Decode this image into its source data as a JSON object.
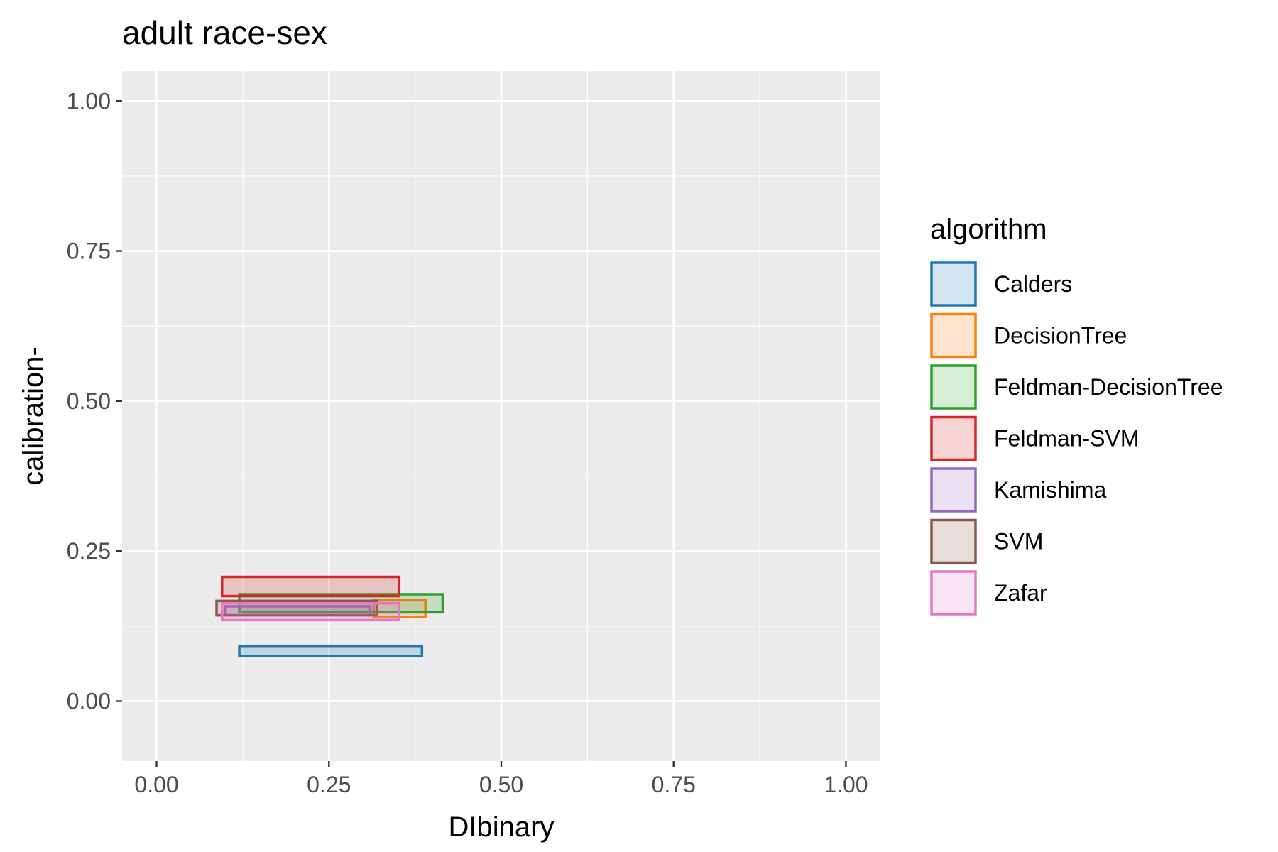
{
  "chart_data": {
    "type": "rect",
    "title": "adult race-sex",
    "xlabel": "DIbinary",
    "ylabel": "calibration-",
    "xlim": [
      -0.05,
      1.05
    ],
    "ylim": [
      -0.1,
      1.05
    ],
    "x_ticks": [
      "0.00",
      "0.25",
      "0.50",
      "0.75",
      "1.00"
    ],
    "y_ticks": [
      "0.00",
      "0.25",
      "0.50",
      "0.75",
      "1.00"
    ],
    "grid": true,
    "legend": {
      "title": "algorithm",
      "position": "right"
    },
    "series": [
      {
        "name": "Calders",
        "color": "#1f77b4",
        "xmin": 0.12,
        "xmax": 0.385,
        "ymin": 0.075,
        "ymax": 0.092
      },
      {
        "name": "DecisionTree",
        "color": "#ff7f0e",
        "xmin": 0.315,
        "xmax": 0.39,
        "ymin": 0.14,
        "ymax": 0.168
      },
      {
        "name": "Feldman-DecisionTree",
        "color": "#2ca02c",
        "xmin": 0.12,
        "xmax": 0.415,
        "ymin": 0.148,
        "ymax": 0.178
      },
      {
        "name": "Feldman-SVM",
        "color": "#d62728",
        "xmin": 0.095,
        "xmax": 0.352,
        "ymin": 0.175,
        "ymax": 0.207
      },
      {
        "name": "Kamishima",
        "color": "#9467bd",
        "xmin": 0.1,
        "xmax": 0.31,
        "ymin": 0.143,
        "ymax": 0.158
      },
      {
        "name": "SVM",
        "color": "#8c564b",
        "xmin": 0.087,
        "xmax": 0.32,
        "ymin": 0.143,
        "ymax": 0.167
      },
      {
        "name": "Zafar",
        "color": "#e377c2",
        "xmin": 0.095,
        "xmax": 0.352,
        "ymin": 0.135,
        "ymax": 0.163
      }
    ]
  }
}
